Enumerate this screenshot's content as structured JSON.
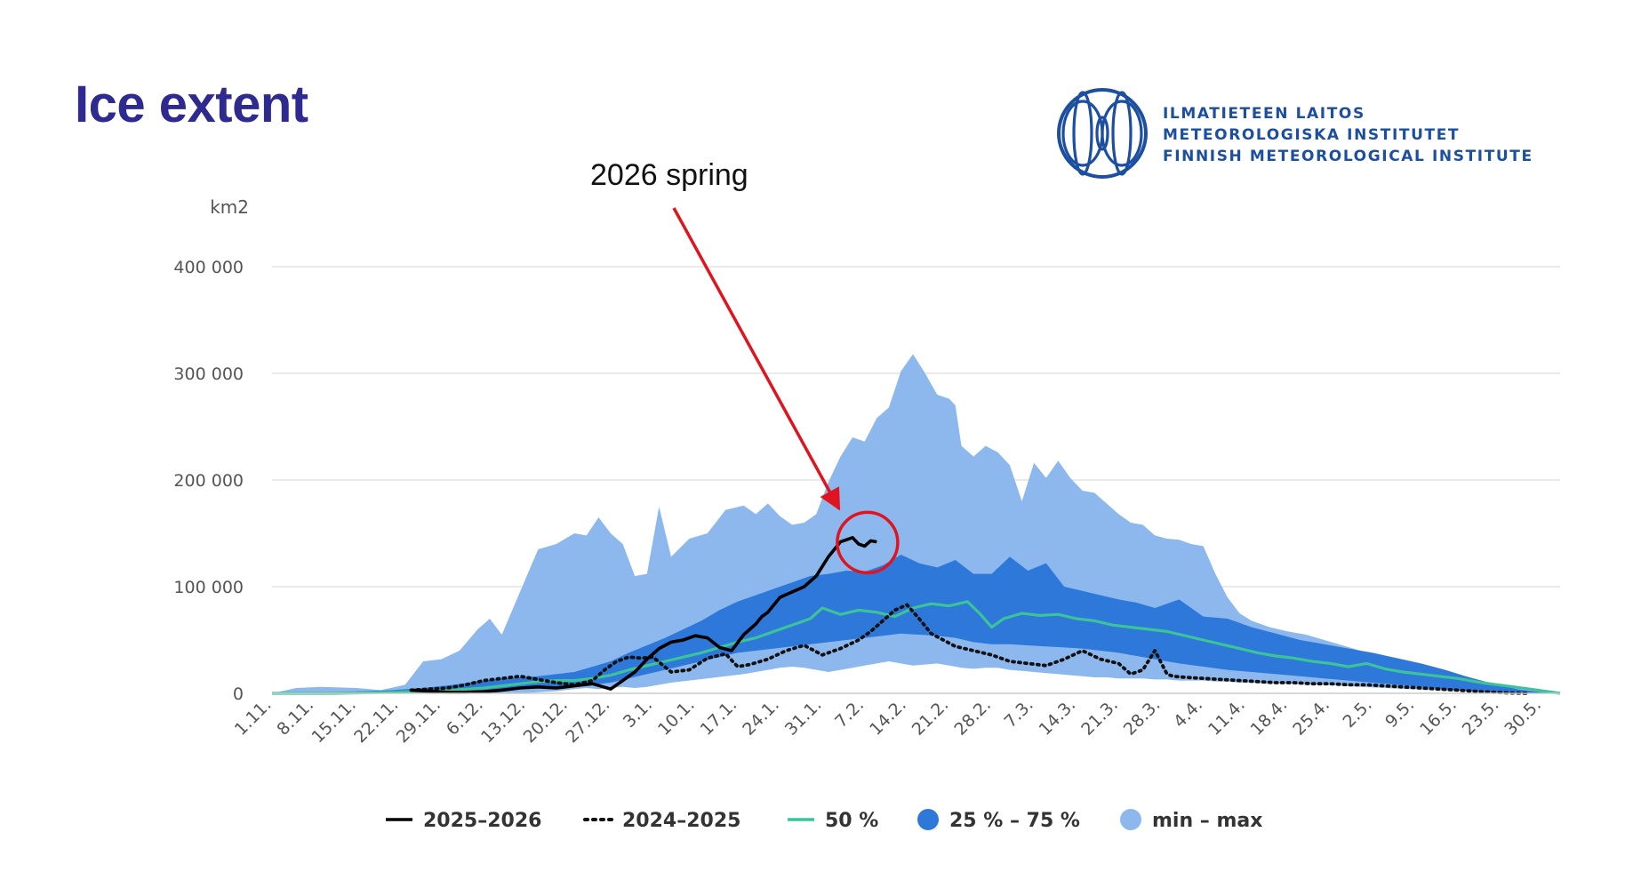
{
  "page": {
    "title": "Ice extent"
  },
  "logo": {
    "lines": [
      "ILMATIETEEN LAITOS",
      "METEOROLOGISKA INSTITUTET",
      "FINNISH METEOROLOGICAL INSTITUTE"
    ]
  },
  "colors": {
    "title": "#2e2a8f",
    "minmax": "#8db8ee",
    "iqr": "#2d78d8",
    "median": "#3cc39a",
    "current": "#000000",
    "previous": "#111111",
    "annotation": "#e0141e",
    "grid": "#e3e3e3"
  },
  "chart_data": {
    "type": "area",
    "title": "Ice extent",
    "ylabel": "km2",
    "ylim": [
      0,
      400000
    ],
    "yticks": [
      0,
      100000,
      200000,
      300000,
      400000
    ],
    "ytick_labels": [
      "0",
      "100 000",
      "200 000",
      "300 000",
      "400 000"
    ],
    "x_tick_labels": [
      "1.11.",
      "8.11.",
      "15.11.",
      "22.11.",
      "29.11.",
      "6.12.",
      "13.12.",
      "20.12.",
      "27.12.",
      "3.1.",
      "10.1.",
      "17.1.",
      "24.1.",
      "31.1.",
      "7.2.",
      "14.2.",
      "21.2.",
      "28.2.",
      "7.3.",
      "14.3.",
      "21.3.",
      "28.3.",
      "4.4.",
      "11.4.",
      "18.4.",
      "25.4.",
      "2.5.",
      "9.5.",
      "16.5.",
      "23.5.",
      "30.5."
    ],
    "x_unit": "day index from 1.11.",
    "annotation": {
      "text": "2026 spring",
      "target_day": 97,
      "target_value": 148000
    },
    "legend": [
      "2025–2026",
      "2024–2025",
      "50 %",
      "25 % – 75 %",
      "min – max"
    ],
    "series": [
      {
        "name": "min – max",
        "kind": "band",
        "x": [
          0,
          4,
          8,
          14,
          18,
          22,
          25,
          28,
          31,
          34,
          36,
          38,
          41,
          44,
          47,
          50,
          52,
          54,
          56,
          58,
          60,
          62,
          64,
          66,
          69,
          72,
          75,
          78,
          80,
          82,
          84,
          86,
          88,
          90,
          92,
          94,
          96,
          98,
          100,
          102,
          104,
          106,
          108,
          110,
          112,
          113,
          114,
          116,
          118,
          120,
          122,
          124,
          126,
          128,
          130,
          132,
          134,
          136,
          138,
          140,
          142,
          144,
          146,
          148,
          150,
          152,
          154,
          156,
          158,
          160,
          162,
          165,
          168,
          171,
          174,
          177,
          180,
          184,
          188,
          192,
          196,
          200,
          205,
          210,
          213
        ],
        "upper": [
          0,
          5000,
          6000,
          5000,
          3000,
          8000,
          30000,
          32000,
          40000,
          60000,
          70000,
          55000,
          95000,
          135000,
          140000,
          150000,
          148000,
          165000,
          150000,
          140000,
          110000,
          112000,
          175000,
          128000,
          145000,
          150000,
          172000,
          176000,
          168000,
          178000,
          166000,
          158000,
          160000,
          168000,
          198000,
          222000,
          240000,
          236000,
          258000,
          268000,
          302000,
          318000,
          300000,
          280000,
          276000,
          270000,
          232000,
          222000,
          232000,
          226000,
          214000,
          180000,
          216000,
          202000,
          218000,
          202000,
          190000,
          188000,
          178000,
          168000,
          160000,
          158000,
          148000,
          145000,
          144000,
          140000,
          138000,
          112000,
          90000,
          75000,
          68000,
          62000,
          58000,
          55000,
          50000,
          45000,
          40000,
          34000,
          25000,
          16000,
          8000,
          3000,
          1500,
          0,
          0
        ],
        "lower": [
          0,
          0,
          0,
          0,
          0,
          0,
          0,
          0,
          0,
          0,
          0,
          0,
          0,
          1000,
          2000,
          4000,
          5000,
          4000,
          5000,
          6000,
          5000,
          6000,
          8000,
          10000,
          12000,
          14000,
          16000,
          18000,
          20000,
          22000,
          24000,
          25000,
          24000,
          22000,
          20000,
          22000,
          24000,
          26000,
          28000,
          30000,
          28000,
          26000,
          27000,
          28000,
          26000,
          25000,
          24000,
          23000,
          24000,
          24000,
          22000,
          21000,
          20000,
          19000,
          18000,
          17000,
          16000,
          15000,
          15000,
          14000,
          14000,
          14000,
          13000,
          13000,
          12000,
          12000,
          12000,
          11000,
          11000,
          10000,
          10000,
          9000,
          9000,
          8000,
          8000,
          7000,
          6000,
          5000,
          4000,
          3000,
          2000,
          1000,
          500,
          0,
          0
        ]
      },
      {
        "name": "25 % – 75 %",
        "kind": "band",
        "x": [
          0,
          10,
          20,
          25,
          30,
          35,
          38,
          41,
          44,
          47,
          50,
          53,
          56,
          59,
          62,
          65,
          68,
          71,
          74,
          77,
          80,
          83,
          86,
          89,
          92,
          95,
          98,
          101,
          104,
          107,
          110,
          113,
          116,
          119,
          122,
          125,
          128,
          131,
          134,
          137,
          140,
          143,
          146,
          150,
          154,
          158,
          162,
          166,
          170,
          174,
          178,
          182,
          186,
          190,
          194,
          198,
          202,
          206,
          210,
          213
        ],
        "upper": [
          0,
          1000,
          3000,
          5000,
          8000,
          12000,
          14000,
          15000,
          16000,
          18000,
          20000,
          25000,
          30000,
          38000,
          45000,
          52000,
          60000,
          68000,
          78000,
          86000,
          92000,
          98000,
          104000,
          110000,
          112000,
          115000,
          114000,
          120000,
          130000,
          122000,
          118000,
          125000,
          112000,
          112000,
          128000,
          115000,
          122000,
          100000,
          96000,
          92000,
          88000,
          85000,
          80000,
          88000,
          72000,
          70000,
          62000,
          56000,
          50000,
          46000,
          42000,
          38000,
          33000,
          28000,
          22000,
          15000,
          9000,
          4000,
          1000,
          0
        ],
        "lower": [
          0,
          0,
          0,
          0,
          1000,
          2000,
          3000,
          4000,
          5000,
          5000,
          6000,
          8000,
          10000,
          14000,
          18000,
          22000,
          26000,
          30000,
          34000,
          38000,
          40000,
          42000,
          44000,
          46000,
          48000,
          50000,
          52000,
          54000,
          56000,
          55000,
          54000,
          52000,
          48000,
          46000,
          46000,
          45000,
          44000,
          43000,
          42000,
          40000,
          38000,
          35000,
          32000,
          28000,
          25000,
          22000,
          20000,
          18000,
          16000,
          14000,
          12000,
          10000,
          8000,
          6000,
          4000,
          2000,
          1000,
          500,
          0,
          0
        ]
      },
      {
        "name": "50 %",
        "kind": "line",
        "x": [
          0,
          10,
          20,
          25,
          30,
          35,
          38,
          41,
          44,
          47,
          50,
          53,
          56,
          59,
          62,
          65,
          68,
          71,
          74,
          77,
          80,
          83,
          86,
          89,
          91,
          94,
          97,
          100,
          103,
          106,
          109,
          112,
          115,
          117,
          119,
          121,
          124,
          127,
          130,
          133,
          136,
          139,
          142,
          145,
          148,
          151,
          154,
          157,
          160,
          163,
          166,
          169,
          172,
          175,
          178,
          181,
          184,
          187,
          190,
          193,
          196,
          200,
          204,
          208,
          213
        ],
        "values": [
          0,
          0,
          1000,
          2000,
          3000,
          5000,
          7000,
          9000,
          11000,
          12000,
          12000,
          14000,
          17000,
          22000,
          26000,
          30000,
          34000,
          38000,
          43000,
          48000,
          52000,
          58000,
          64000,
          70000,
          80000,
          74000,
          78000,
          76000,
          72000,
          80000,
          84000,
          82000,
          86000,
          75000,
          62000,
          70000,
          75000,
          73000,
          74000,
          70000,
          68000,
          64000,
          62000,
          60000,
          58000,
          54000,
          50000,
          46000,
          42000,
          38000,
          35000,
          33000,
          30000,
          28000,
          25000,
          28000,
          23000,
          20000,
          18000,
          16000,
          14000,
          10000,
          7000,
          4000,
          0
        ]
      },
      {
        "name": "2024–2025",
        "kind": "line",
        "style": "dotted",
        "x": [
          23,
          26,
          29,
          32,
          35,
          38,
          41,
          44,
          47,
          50,
          53,
          55,
          57,
          59,
          61,
          63,
          66,
          69,
          72,
          75,
          77,
          79,
          82,
          85,
          88,
          91,
          94,
          97,
          99,
          101,
          103,
          105,
          107,
          109,
          111,
          113,
          116,
          119,
          122,
          125,
          128,
          131,
          134,
          137,
          140,
          142,
          144,
          146,
          148,
          149,
          151,
          154,
          157,
          160,
          163,
          166,
          169,
          172,
          175,
          178,
          181,
          184,
          187,
          190,
          193,
          196,
          200,
          204,
          208
        ],
        "values": [
          3000,
          4000,
          5000,
          8000,
          12000,
          14000,
          16000,
          13000,
          10000,
          8000,
          12000,
          22000,
          30000,
          34000,
          33000,
          34000,
          20000,
          22000,
          33000,
          37000,
          25000,
          27000,
          32000,
          40000,
          45000,
          36000,
          42000,
          50000,
          58000,
          68000,
          78000,
          83000,
          70000,
          56000,
          50000,
          44000,
          40000,
          36000,
          30000,
          28000,
          26000,
          32000,
          40000,
          32000,
          28000,
          18000,
          22000,
          40000,
          18000,
          16000,
          15000,
          14000,
          13000,
          12000,
          11000,
          10000,
          10000,
          9000,
          9000,
          8000,
          8000,
          7000,
          6000,
          5000,
          4000,
          3000,
          1500,
          500,
          0
        ]
      },
      {
        "name": "2025–2026",
        "kind": "line",
        "x": [
          23,
          26,
          29,
          32,
          35,
          38,
          41,
          44,
          47,
          50,
          53,
          56,
          58,
          60,
          62,
          64,
          66,
          68,
          70,
          72,
          74,
          76,
          78,
          80,
          81,
          82,
          84,
          86,
          88,
          90,
          92,
          94,
          96,
          97,
          98,
          99,
          100
        ],
        "values": [
          3000,
          2000,
          1000,
          1000,
          1500,
          3000,
          5000,
          6000,
          5000,
          7000,
          9000,
          4000,
          12000,
          20000,
          32000,
          42000,
          48000,
          50000,
          54000,
          52000,
          43000,
          40000,
          55000,
          65000,
          72000,
          76000,
          90000,
          95000,
          100000,
          110000,
          128000,
          142000,
          146000,
          140000,
          138000,
          143000,
          142000
        ]
      }
    ]
  }
}
